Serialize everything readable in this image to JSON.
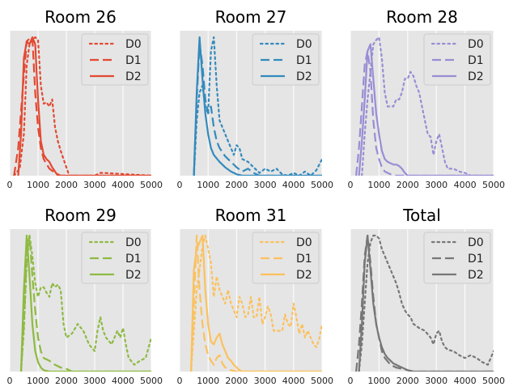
{
  "chart_data": [
    {
      "type": "line",
      "title": "Room 26",
      "color": "#e24a33",
      "xlim": [
        0,
        5000
      ],
      "xticks": [
        "0",
        "1000",
        "2000",
        "3000",
        "4000",
        "5000"
      ],
      "ylabel": "",
      "grid": true,
      "legend_position": "top-right",
      "series": [
        {
          "name": "D0",
          "style": "dotted",
          "x": [
            150,
            350,
            500,
            600,
            700,
            800,
            900,
            1000,
            1100,
            1200,
            1300,
            1400,
            1500,
            1600,
            1700,
            1800,
            1900,
            2000,
            2100,
            2200,
            3000,
            3200,
            3300,
            5000
          ],
          "y": [
            0.0,
            0.05,
            0.3,
            0.8,
            0.95,
            0.98,
            1.0,
            0.98,
            0.65,
            0.52,
            0.53,
            0.5,
            0.55,
            0.35,
            0.25,
            0.18,
            0.12,
            0.06,
            0.0,
            0.0,
            0.0,
            0.02,
            0.02,
            0.0
          ]
        },
        {
          "name": "D1",
          "style": "dashed",
          "x": [
            150,
            300,
            450,
            600,
            700,
            800,
            900,
            1000,
            1100,
            1200,
            1400,
            1600,
            1800,
            5000
          ],
          "y": [
            0.0,
            0.2,
            0.6,
            0.97,
            0.99,
            1.0,
            0.6,
            0.35,
            0.2,
            0.12,
            0.05,
            0.02,
            0.0,
            0.0
          ]
        },
        {
          "name": "D2",
          "style": "solid",
          "x": [
            300,
            400,
            500,
            600,
            700,
            800,
            900,
            1000,
            1100,
            1200,
            1300,
            1400,
            1500,
            1600,
            1700,
            5000
          ],
          "y": [
            0.0,
            0.3,
            0.85,
            0.97,
            0.95,
            1.0,
            0.95,
            0.55,
            0.25,
            0.15,
            0.12,
            0.1,
            0.06,
            0.03,
            0.0,
            0.0
          ]
        }
      ]
    },
    {
      "type": "line",
      "title": "Room 27",
      "color": "#348abd",
      "xlim": [
        0,
        5000
      ],
      "xticks": [
        "0",
        "1000",
        "2000",
        "3000",
        "4000",
        "5000"
      ],
      "ylabel": "",
      "grid": true,
      "legend_position": "top-right",
      "series": [
        {
          "name": "D0",
          "style": "dotted",
          "x": [
            500,
            600,
            700,
            800,
            900,
            1000,
            1100,
            1200,
            1300,
            1400,
            1500,
            1600,
            1700,
            1800,
            1900,
            2000,
            2100,
            2200,
            2400,
            2600,
            2800,
            3000,
            3200,
            3400,
            3600,
            3800,
            4000,
            4200,
            4400,
            4600,
            4800,
            5000
          ],
          "y": [
            0.0,
            0.4,
            0.6,
            0.65,
            0.5,
            0.45,
            0.9,
            1.0,
            0.65,
            0.4,
            0.35,
            0.3,
            0.25,
            0.2,
            0.15,
            0.22,
            0.2,
            0.12,
            0.1,
            0.06,
            0.02,
            0.05,
            0.03,
            0.05,
            0.01,
            0.0,
            0.02,
            0.0,
            0.03,
            0.0,
            0.04,
            0.12
          ]
        },
        {
          "name": "D1",
          "style": "dashed",
          "x": [
            500,
            600,
            700,
            800,
            900,
            1000,
            1100,
            1200,
            1300,
            1400,
            1600,
            1800,
            2000,
            2200,
            2400,
            2600,
            2800,
            5000
          ],
          "y": [
            0.0,
            0.55,
            0.95,
            0.8,
            0.55,
            0.45,
            0.5,
            0.35,
            0.25,
            0.2,
            0.14,
            0.1,
            0.06,
            0.03,
            0.05,
            0.02,
            0.0,
            0.0
          ]
        },
        {
          "name": "D2",
          "style": "solid",
          "x": [
            500,
            600,
            700,
            800,
            900,
            1000,
            1100,
            1200,
            1400,
            1600,
            1800,
            2000,
            2200,
            2400,
            5000
          ],
          "y": [
            0.0,
            0.6,
            1.0,
            0.7,
            0.45,
            0.3,
            0.2,
            0.15,
            0.1,
            0.06,
            0.03,
            0.01,
            0.0,
            0.0,
            0.0
          ]
        }
      ]
    },
    {
      "type": "line",
      "title": "Room 28",
      "color": "#988ed5",
      "xlim": [
        0,
        5000
      ],
      "xticks": [
        "0",
        "1000",
        "2000",
        "3000",
        "4000",
        "5000"
      ],
      "ylabel": "",
      "grid": true,
      "legend_position": "top-right",
      "series": [
        {
          "name": "D0",
          "style": "dotted",
          "x": [
            400,
            500,
            600,
            700,
            800,
            900,
            1000,
            1100,
            1200,
            1300,
            1400,
            1500,
            1600,
            1700,
            1800,
            1900,
            2000,
            2100,
            2200,
            2300,
            2400,
            2500,
            2600,
            2700,
            2800,
            2900,
            3000,
            3100,
            3200,
            3300,
            3400,
            3600,
            3800,
            4000,
            4200,
            5000
          ],
          "y": [
            0.0,
            0.3,
            0.55,
            0.75,
            0.95,
            0.98,
            1.0,
            0.85,
            0.6,
            0.5,
            0.5,
            0.5,
            0.55,
            0.55,
            0.6,
            0.7,
            0.7,
            0.75,
            0.72,
            0.65,
            0.6,
            0.5,
            0.4,
            0.3,
            0.28,
            0.15,
            0.25,
            0.3,
            0.2,
            0.1,
            0.05,
            0.05,
            0.03,
            0.02,
            0.0,
            0.0
          ]
        },
        {
          "name": "D1",
          "style": "dashed",
          "x": [
            200,
            300,
            400,
            500,
            600,
            700,
            800,
            900,
            1000,
            1100,
            1200,
            1400,
            1600,
            5000
          ],
          "y": [
            0.0,
            0.2,
            0.5,
            0.8,
            0.9,
            0.75,
            0.4,
            0.2,
            0.12,
            0.06,
            0.03,
            0.01,
            0.0,
            0.0
          ]
        },
        {
          "name": "D2",
          "style": "solid",
          "x": [
            300,
            400,
            500,
            600,
            700,
            800,
            900,
            1000,
            1100,
            1200,
            1300,
            1400,
            1500,
            1600,
            1700,
            1800,
            1900,
            2000,
            5000
          ],
          "y": [
            0.0,
            0.25,
            0.55,
            0.9,
            0.95,
            0.7,
            0.45,
            0.3,
            0.18,
            0.12,
            0.1,
            0.09,
            0.08,
            0.08,
            0.07,
            0.05,
            0.02,
            0.0,
            0.0
          ]
        }
      ]
    },
    {
      "type": "line",
      "title": "Room 29",
      "color": "#8eba42",
      "xlim": [
        0,
        5000
      ],
      "xticks": [
        "0",
        "1000",
        "2000",
        "3000",
        "4000",
        "5000"
      ],
      "ylabel": "",
      "grid": true,
      "legend_position": "top-right",
      "series": [
        {
          "name": "D0",
          "style": "dotted",
          "x": [
            400,
            500,
            600,
            700,
            800,
            900,
            1000,
            1100,
            1200,
            1300,
            1400,
            1500,
            1600,
            1700,
            1800,
            1900,
            2000,
            2200,
            2400,
            2600,
            2800,
            3000,
            3100,
            3200,
            3300,
            3400,
            3600,
            3800,
            3900,
            4000,
            4100,
            4200,
            4400,
            4600,
            4800,
            5000
          ],
          "y": [
            0.0,
            0.3,
            0.8,
            1.0,
            0.85,
            0.65,
            0.55,
            0.62,
            0.62,
            0.58,
            0.55,
            0.65,
            0.62,
            0.64,
            0.6,
            0.35,
            0.25,
            0.28,
            0.35,
            0.3,
            0.2,
            0.15,
            0.3,
            0.4,
            0.3,
            0.25,
            0.2,
            0.3,
            0.25,
            0.32,
            0.2,
            0.1,
            0.05,
            0.08,
            0.1,
            0.25
          ]
        },
        {
          "name": "D1",
          "style": "dashed",
          "x": [
            400,
            500,
            600,
            700,
            800,
            900,
            1000,
            1100,
            1200,
            1400,
            1600,
            1800,
            2000,
            2200,
            5000
          ],
          "y": [
            0.0,
            0.35,
            0.85,
            1.0,
            0.7,
            0.45,
            0.25,
            0.15,
            0.1,
            0.08,
            0.05,
            0.03,
            0.02,
            0.0,
            0.0
          ]
        },
        {
          "name": "D2",
          "style": "solid",
          "x": [
            400,
            500,
            600,
            700,
            800,
            900,
            1000,
            1100,
            1200,
            1400,
            5000
          ],
          "y": [
            0.0,
            0.6,
            1.0,
            0.7,
            0.35,
            0.15,
            0.07,
            0.03,
            0.01,
            0.0,
            0.0
          ]
        }
      ]
    },
    {
      "type": "line",
      "title": "Room 31",
      "color": "#fbc15e",
      "xlim": [
        0,
        5000
      ],
      "xticks": [
        "0",
        "1000",
        "2000",
        "3000",
        "4000",
        "5000"
      ],
      "ylabel": "",
      "grid": true,
      "legend_position": "top-right",
      "series": [
        {
          "name": "D0",
          "style": "dotted",
          "x": [
            400,
            500,
            600,
            700,
            800,
            900,
            1000,
            1100,
            1200,
            1300,
            1400,
            1500,
            1600,
            1700,
            1800,
            1900,
            2000,
            2100,
            2200,
            2300,
            2400,
            2500,
            2600,
            2700,
            2800,
            2900,
            3000,
            3100,
            3200,
            3300,
            3400,
            3500,
            3600,
            3700,
            3800,
            3900,
            4000,
            4100,
            4200,
            4300,
            4400,
            4500,
            4600,
            4700,
            4800,
            4900,
            5000
          ],
          "y": [
            0.0,
            0.3,
            0.6,
            0.75,
            0.92,
            1.0,
            0.9,
            0.8,
            0.55,
            0.7,
            0.6,
            0.55,
            0.5,
            0.6,
            0.5,
            0.45,
            0.4,
            0.55,
            0.5,
            0.4,
            0.42,
            0.55,
            0.4,
            0.4,
            0.55,
            0.35,
            0.4,
            0.48,
            0.42,
            0.3,
            0.3,
            0.3,
            0.3,
            0.42,
            0.35,
            0.33,
            0.5,
            0.4,
            0.28,
            0.35,
            0.25,
            0.3,
            0.25,
            0.2,
            0.18,
            0.24,
            0.35
          ]
        },
        {
          "name": "D1",
          "style": "dashed",
          "x": [
            400,
            500,
            600,
            700,
            800,
            900,
            1000,
            1100,
            1200,
            1300,
            1400,
            1500,
            1600,
            1800,
            2000,
            5000
          ],
          "y": [
            0.0,
            0.5,
            1.0,
            0.6,
            0.35,
            0.2,
            0.12,
            0.08,
            0.05,
            0.1,
            0.12,
            0.06,
            0.03,
            0.01,
            0.0,
            0.0
          ]
        },
        {
          "name": "D2",
          "style": "solid",
          "x": [
            400,
            500,
            600,
            700,
            800,
            900,
            1000,
            1100,
            1200,
            1300,
            1400,
            1500,
            1600,
            1700,
            1800,
            1900,
            2000,
            2100,
            2200,
            5000
          ],
          "y": [
            0.0,
            0.75,
            0.9,
            0.95,
            1.0,
            0.6,
            0.35,
            0.22,
            0.2,
            0.25,
            0.28,
            0.2,
            0.15,
            0.1,
            0.08,
            0.05,
            0.03,
            0.01,
            0.0,
            0.0
          ]
        }
      ]
    },
    {
      "type": "line",
      "title": "Total",
      "color": "#777777",
      "xlim": [
        0,
        5000
      ],
      "xticks": [
        "0",
        "1000",
        "2000",
        "3000",
        "4000",
        "5000"
      ],
      "ylabel": "",
      "grid": true,
      "legend_position": "top-right",
      "series": [
        {
          "name": "D0",
          "style": "dotted",
          "x": [
            300,
            400,
            500,
            600,
            700,
            800,
            900,
            1000,
            1100,
            1200,
            1300,
            1400,
            1500,
            1600,
            1700,
            1800,
            1900,
            2000,
            2100,
            2200,
            2400,
            2600,
            2800,
            2900,
            3000,
            3100,
            3200,
            3300,
            3400,
            3600,
            3800,
            4000,
            4200,
            4400,
            4600,
            4800,
            5000
          ],
          "y": [
            0.0,
            0.2,
            0.5,
            0.8,
            0.95,
            1.0,
            1.0,
            0.98,
            0.9,
            0.85,
            0.8,
            0.75,
            0.7,
            0.65,
            0.58,
            0.5,
            0.45,
            0.42,
            0.4,
            0.35,
            0.32,
            0.3,
            0.25,
            0.2,
            0.28,
            0.3,
            0.22,
            0.18,
            0.16,
            0.15,
            0.12,
            0.1,
            0.12,
            0.1,
            0.07,
            0.05,
            0.15
          ]
        },
        {
          "name": "D1",
          "style": "dashed",
          "x": [
            200,
            300,
            400,
            500,
            600,
            700,
            800,
            900,
            1000,
            1100,
            1200,
            1400,
            1600,
            1800,
            2000,
            2200,
            5000
          ],
          "y": [
            0.0,
            0.2,
            0.5,
            0.85,
            1.0,
            0.8,
            0.55,
            0.35,
            0.25,
            0.15,
            0.1,
            0.05,
            0.03,
            0.02,
            0.01,
            0.0,
            0.0
          ]
        },
        {
          "name": "D2",
          "style": "solid",
          "x": [
            300,
            400,
            500,
            600,
            700,
            800,
            900,
            1000,
            1100,
            1200,
            1300,
            1400,
            1500,
            1600,
            1800,
            2000,
            2200,
            5000
          ],
          "y": [
            0.0,
            0.35,
            0.8,
            1.0,
            0.75,
            0.5,
            0.35,
            0.25,
            0.18,
            0.13,
            0.1,
            0.08,
            0.06,
            0.05,
            0.03,
            0.01,
            0.0,
            0.0
          ]
        }
      ]
    }
  ]
}
